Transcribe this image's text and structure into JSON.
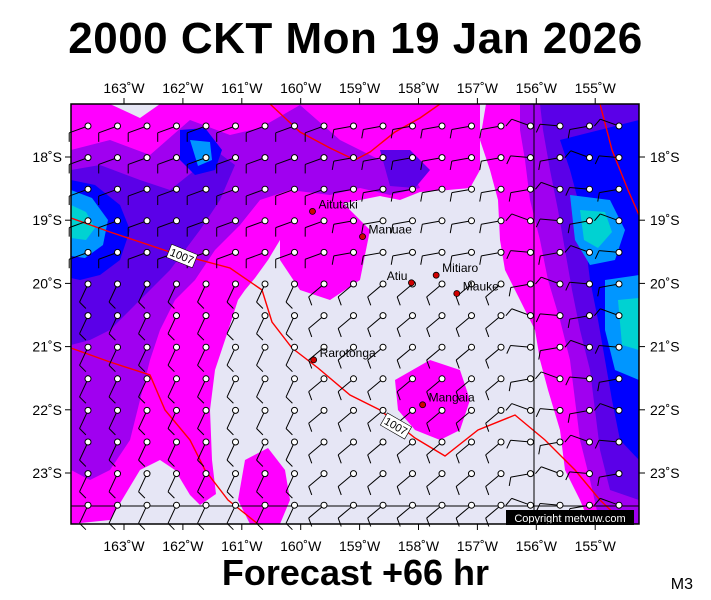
{
  "title": "2000 CKT Mon 19 Jan 2026",
  "footer": "Forecast +66 hr",
  "map_code": "M3",
  "copyright": "Copyright metvuw.com",
  "lon_labels": [
    "163˚W",
    "162˚W",
    "161˚W",
    "160˚W",
    "159˚W",
    "158˚W",
    "157˚W",
    "156˚W",
    "155˚W"
  ],
  "lat_labels": [
    "18˚S",
    "19˚S",
    "20˚S",
    "21˚S",
    "22˚S",
    "23˚S"
  ],
  "places": [
    {
      "name": "Aitutaki",
      "lon": -159.8,
      "lat": -18.86
    },
    {
      "name": "Manuae",
      "lon": -158.95,
      "lat": -19.26
    },
    {
      "name": "Atiu",
      "lon": -158.12,
      "lat": -19.99
    },
    {
      "name": "Mitiaro",
      "lon": -157.7,
      "lat": -19.87
    },
    {
      "name": "Mauke",
      "lon": -157.35,
      "lat": -20.16
    },
    {
      "name": "Rarotonga",
      "lon": -159.78,
      "lat": -21.21
    },
    {
      "name": "Mangaia",
      "lon": -157.93,
      "lat": -21.92
    }
  ],
  "isobar_labels": [
    "1007",
    "1007"
  ],
  "colors": {
    "calm": "#e6e6f5",
    "light": "#ff00ff",
    "moderate": "#5b00e8",
    "strong": "#0000ff",
    "stronger": "#0096ff",
    "strongest": "#00d2d2",
    "isobar": "#ff0000",
    "island": "#d00000"
  }
}
